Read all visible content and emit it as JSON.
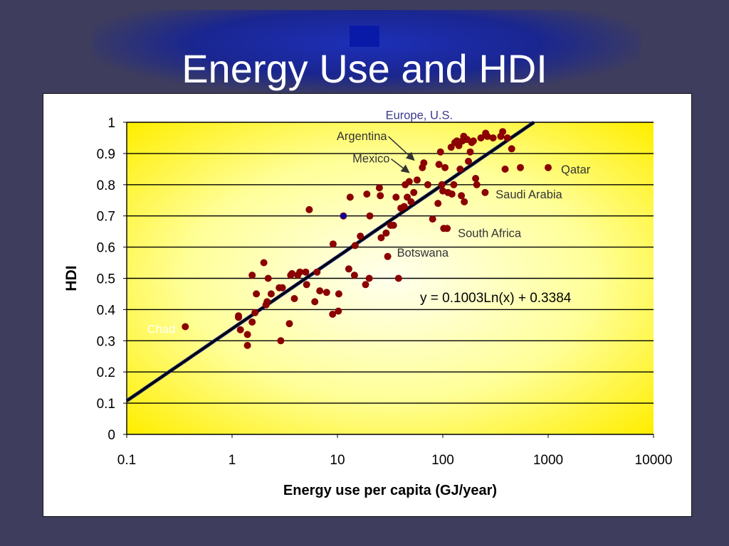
{
  "slide": {
    "title": "Energy Use and HDI"
  },
  "chart_data": {
    "type": "scatter",
    "title": "",
    "xlabel": "Energy use per capita (GJ/year)",
    "ylabel": "HDI",
    "xscale": "log",
    "xlim": [
      0.1,
      10000
    ],
    "ylim": [
      0,
      1
    ],
    "x_ticks": [
      "0.1",
      "1",
      "10",
      "100",
      "1000",
      "10000"
    ],
    "y_ticks": [
      "0",
      "0.1",
      "0.2",
      "0.3",
      "0.4",
      "0.5",
      "0.6",
      "0.7",
      "0.8",
      "0.9",
      "1"
    ],
    "grid": "horizontal",
    "trendline": {
      "equation": "y = 0.1003Ln(x) + 0.3384",
      "a": 0.1003,
      "b": 0.3384
    },
    "colors": {
      "points": "#8b0000",
      "highlight": "#0000aa",
      "trendline": "#000000",
      "plot_bg_outer": "#ffee00",
      "plot_bg_inner": "#ffffee"
    },
    "annotations": [
      {
        "label": "Europe, U.S.",
        "color": "#3a3a8a",
        "x": 150,
        "y": 1.01
      },
      {
        "label": "Argentina",
        "color": "#333333",
        "x": 55,
        "y": 0.87,
        "arrow": true
      },
      {
        "label": "Mexico",
        "color": "#333333",
        "x": 50,
        "y": 0.83,
        "arrow": true
      },
      {
        "label": "Qatar",
        "color": "#333333",
        "x": 1000,
        "y": 0.85
      },
      {
        "label": "Saudi Arabia",
        "color": "#333333",
        "x": 255,
        "y": 0.77
      },
      {
        "label": "South Africa",
        "color": "#333333",
        "x": 110,
        "y": 0.66
      },
      {
        "label": "Botswana",
        "color": "#333333",
        "x": 30,
        "y": 0.57
      },
      {
        "label": "Chad",
        "color": "#ffffff",
        "x": 0.36,
        "y": 0.34
      }
    ],
    "points": [
      [
        0.36,
        0.345
      ],
      [
        1.15,
        0.38
      ],
      [
        1.15,
        0.375
      ],
      [
        1.2,
        0.335
      ],
      [
        1.4,
        0.285
      ],
      [
        1.4,
        0.32
      ],
      [
        1.55,
        0.36
      ],
      [
        1.55,
        0.51
      ],
      [
        1.65,
        0.39
      ],
      [
        1.7,
        0.45
      ],
      [
        2.0,
        0.55
      ],
      [
        2.1,
        0.415
      ],
      [
        2.15,
        0.425
      ],
      [
        2.2,
        0.5
      ],
      [
        2.35,
        0.45
      ],
      [
        2.8,
        0.47
      ],
      [
        2.9,
        0.3
      ],
      [
        3.0,
        0.47
      ],
      [
        3.5,
        0.355
      ],
      [
        3.6,
        0.51
      ],
      [
        3.7,
        0.515
      ],
      [
        3.9,
        0.435
      ],
      [
        4.2,
        0.51
      ],
      [
        4.4,
        0.52
      ],
      [
        5.0,
        0.52
      ],
      [
        5.1,
        0.48
      ],
      [
        5.4,
        0.72
      ],
      [
        6.1,
        0.425
      ],
      [
        6.4,
        0.52
      ],
      [
        6.8,
        0.46
      ],
      [
        7.9,
        0.455
      ],
      [
        9.0,
        0.385
      ],
      [
        9.1,
        0.61
      ],
      [
        10.2,
        0.395
      ],
      [
        10.3,
        0.45
      ],
      [
        11.4,
        0.7
      ],
      [
        12.8,
        0.53
      ],
      [
        13.2,
        0.76
      ],
      [
        14.5,
        0.51
      ],
      [
        14.7,
        0.605
      ],
      [
        16.5,
        0.635
      ],
      [
        18.5,
        0.48
      ],
      [
        19.0,
        0.77
      ],
      [
        20.0,
        0.5
      ],
      [
        20.3,
        0.7
      ],
      [
        25.0,
        0.79
      ],
      [
        25.5,
        0.765
      ],
      [
        26.0,
        0.63
      ],
      [
        29.0,
        0.645
      ],
      [
        30.0,
        0.57
      ],
      [
        32.0,
        0.67
      ],
      [
        34.0,
        0.67
      ],
      [
        36.0,
        0.76
      ],
      [
        38.0,
        0.5
      ],
      [
        40.0,
        0.725
      ],
      [
        43.0,
        0.73
      ],
      [
        44.0,
        0.8
      ],
      [
        46.0,
        0.76
      ],
      [
        48.0,
        0.81
      ],
      [
        50.0,
        0.745
      ],
      [
        53.0,
        0.775
      ],
      [
        57.0,
        0.815
      ],
      [
        64.0,
        0.855
      ],
      [
        66.0,
        0.87
      ],
      [
        72.0,
        0.8
      ],
      [
        80.0,
        0.69
      ],
      [
        90.0,
        0.74
      ],
      [
        92.0,
        0.865
      ],
      [
        95.0,
        0.905
      ],
      [
        98.0,
        0.8
      ],
      [
        100.0,
        0.78
      ],
      [
        102.0,
        0.66
      ],
      [
        105.0,
        0.855
      ],
      [
        110.0,
        0.66
      ],
      [
        112.0,
        0.775
      ],
      [
        120.0,
        0.92
      ],
      [
        122.0,
        0.77
      ],
      [
        127.0,
        0.8
      ],
      [
        130.0,
        0.935
      ],
      [
        136.0,
        0.94
      ],
      [
        140.0,
        0.93
      ],
      [
        142.0,
        0.925
      ],
      [
        146.0,
        0.85
      ],
      [
        150.0,
        0.765
      ],
      [
        153.0,
        0.94
      ],
      [
        158.0,
        0.955
      ],
      [
        160.0,
        0.745
      ],
      [
        165.0,
        0.945
      ],
      [
        170.0,
        0.945
      ],
      [
        175.0,
        0.875
      ],
      [
        182.0,
        0.905
      ],
      [
        188.0,
        0.935
      ],
      [
        195.0,
        0.94
      ],
      [
        205.0,
        0.82
      ],
      [
        210.0,
        0.8
      ],
      [
        230.0,
        0.95
      ],
      [
        252.0,
        0.775
      ],
      [
        255.0,
        0.965
      ],
      [
        265.0,
        0.955
      ],
      [
        300.0,
        0.95
      ],
      [
        355.0,
        0.955
      ],
      [
        370.0,
        0.97
      ],
      [
        390.0,
        0.85
      ],
      [
        410.0,
        0.95
      ],
      [
        450.0,
        0.915
      ],
      [
        545.0,
        0.855
      ],
      [
        1000.0,
        0.855
      ]
    ],
    "highlight_points": [
      [
        11.4,
        0.7
      ]
    ]
  }
}
